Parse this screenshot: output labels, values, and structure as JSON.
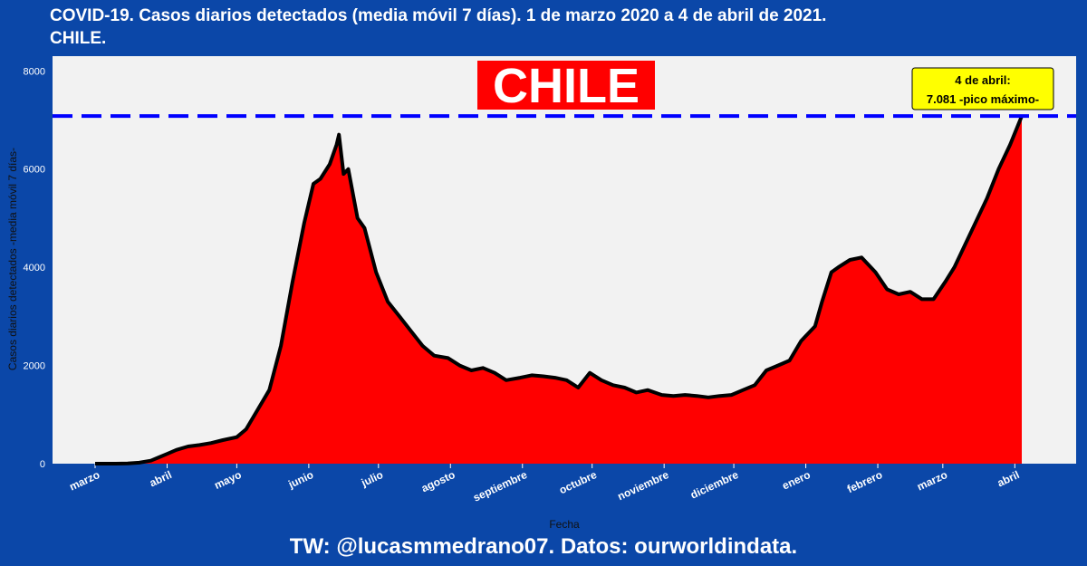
{
  "header": {
    "title_line1": "COVID-19. Casos diarios detectados (media móvil 7 días). 1 de marzo 2020 a 4 de abril de 2021.",
    "title_line2": "CHILE."
  },
  "footer": {
    "credit": "TW: @lucasmmedrano07. Datos: ourworldindata."
  },
  "colors": {
    "background": "#0b47a8",
    "plot_bg": "#f2f2f2",
    "fill": "#ff0000",
    "line": "#000000",
    "ref_line": "#0000ff",
    "annotation_bg": "#ffff00"
  },
  "chart_data": {
    "type": "area",
    "title": "COVID-19. Casos diarios detectados (media móvil 7 días). 1 de marzo 2020 a 4 de abril de 2021.",
    "subtitle": "CHILE.",
    "big_label": "CHILE",
    "xlabel": "Fecha",
    "ylabel": "Casos diarios detectados -media móvil 7 días-",
    "x_range": [
      "2020-03-01",
      "2021-04-04"
    ],
    "ylim": [
      0,
      8300
    ],
    "y_ticks": [
      0,
      2000,
      4000,
      6000,
      8000
    ],
    "x_ticks": [
      {
        "date": "2020-03-01",
        "label": "marzo"
      },
      {
        "date": "2020-04-01",
        "label": "abril"
      },
      {
        "date": "2020-05-01",
        "label": "mayo"
      },
      {
        "date": "2020-06-01",
        "label": "junio"
      },
      {
        "date": "2020-07-01",
        "label": "julio"
      },
      {
        "date": "2020-08-01",
        "label": "agosto"
      },
      {
        "date": "2020-09-01",
        "label": "septiembre"
      },
      {
        "date": "2020-10-01",
        "label": "octubre"
      },
      {
        "date": "2020-11-01",
        "label": "noviembre"
      },
      {
        "date": "2020-12-01",
        "label": "diciembre"
      },
      {
        "date": "2021-01-01",
        "label": "enero"
      },
      {
        "date": "2021-02-01",
        "label": "febrero"
      },
      {
        "date": "2021-03-01",
        "label": "marzo"
      },
      {
        "date": "2021-04-01",
        "label": "abril"
      }
    ],
    "reference_line": {
      "value": 7081,
      "style": "dashed"
    },
    "annotation": {
      "line1": "4 de abril:",
      "line2": "7.081 -pico máximo-"
    },
    "grid": false,
    "series": [
      {
        "dates": [
          "2020-03-01",
          "2020-03-04",
          "2020-03-10",
          "2020-03-15",
          "2020-03-20",
          "2020-03-25",
          "2020-03-28",
          "2020-04-01",
          "2020-04-05",
          "2020-04-10",
          "2020-04-15",
          "2020-04-20",
          "2020-04-25",
          "2020-05-01",
          "2020-05-05",
          "2020-05-10",
          "2020-05-15",
          "2020-05-20",
          "2020-05-25",
          "2020-05-30",
          "2020-06-03",
          "2020-06-06",
          "2020-06-10",
          "2020-06-13",
          "2020-06-14",
          "2020-06-16",
          "2020-06-18",
          "2020-06-22",
          "2020-06-25",
          "2020-06-30",
          "2020-07-05",
          "2020-07-10",
          "2020-07-15",
          "2020-07-20",
          "2020-07-25",
          "2020-07-31",
          "2020-08-05",
          "2020-08-10",
          "2020-08-15",
          "2020-08-20",
          "2020-08-25",
          "2020-08-31",
          "2020-09-05",
          "2020-09-10",
          "2020-09-15",
          "2020-09-20",
          "2020-09-25",
          "2020-09-30",
          "2020-10-05",
          "2020-10-10",
          "2020-10-15",
          "2020-10-20",
          "2020-10-25",
          "2020-10-31",
          "2020-11-05",
          "2020-11-10",
          "2020-11-15",
          "2020-11-20",
          "2020-11-25",
          "2020-11-30",
          "2020-12-05",
          "2020-12-10",
          "2020-12-15",
          "2020-12-20",
          "2020-12-25",
          "2020-12-30",
          "2021-01-05",
          "2021-01-08",
          "2021-01-12",
          "2021-01-15",
          "2021-01-20",
          "2021-01-25",
          "2021-01-31",
          "2021-02-05",
          "2021-02-10",
          "2021-02-15",
          "2021-02-20",
          "2021-02-25",
          "2021-03-02",
          "2021-03-06",
          "2021-03-10",
          "2021-03-15",
          "2021-03-20",
          "2021-03-25",
          "2021-03-30",
          "2021-04-04"
        ],
        "values": [
          0,
          0,
          0,
          5,
          20,
          60,
          120,
          200,
          280,
          350,
          380,
          420,
          480,
          540,
          700,
          1100,
          1500,
          2400,
          3700,
          4900,
          5700,
          5800,
          6100,
          6500,
          6700,
          5900,
          6000,
          5000,
          4800,
          3900,
          3300,
          3000,
          2700,
          2400,
          2200,
          2150,
          2000,
          1900,
          1950,
          1850,
          1700,
          1750,
          1800,
          1780,
          1750,
          1700,
          1550,
          1850,
          1700,
          1600,
          1550,
          1450,
          1500,
          1400,
          1380,
          1400,
          1380,
          1350,
          1380,
          1400,
          1500,
          1600,
          1900,
          2000,
          2100,
          2500,
          2800,
          3300,
          3900,
          4000,
          4150,
          4200,
          3900,
          3550,
          3450,
          3500,
          3350,
          3350,
          3700,
          4000,
          4400,
          4900,
          5400,
          6000,
          6500,
          7081
        ]
      }
    ]
  }
}
